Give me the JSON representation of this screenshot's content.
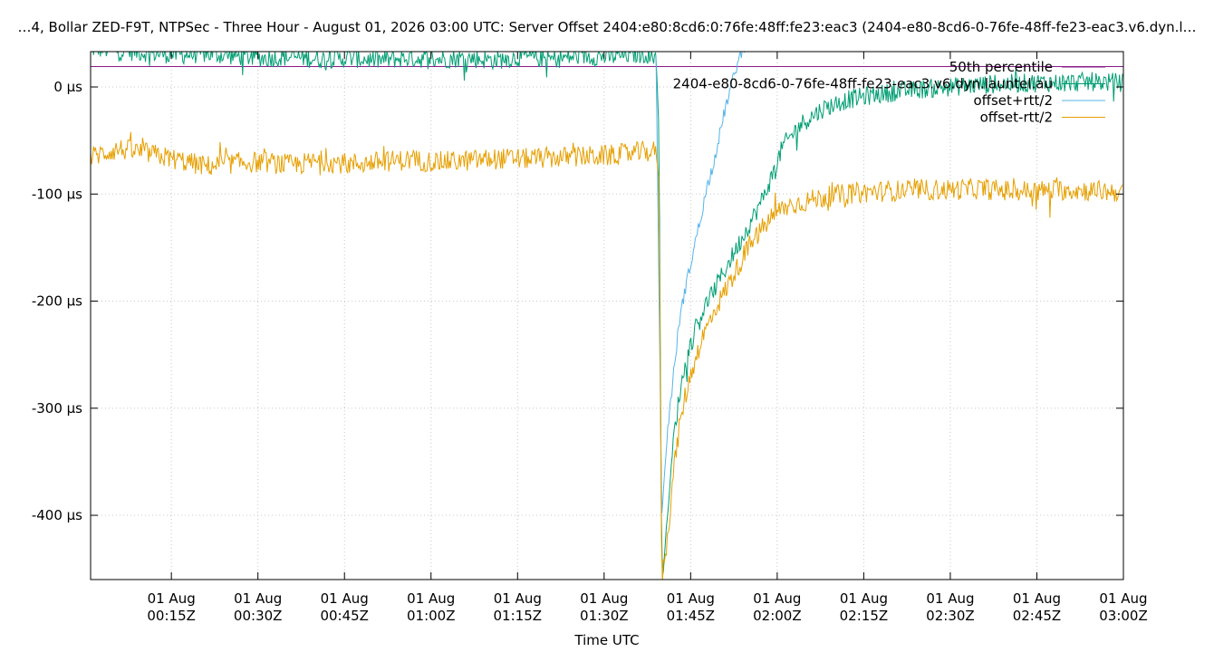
{
  "chart_data": {
    "type": "line",
    "title": "…4, Bollar ZED-F9T, NTPSec - Three Hour - August 01, 2026 03:00 UTC: Server Offset 2404:e80:8cd6:0:76fe:48ff:fe23:eac3 (2404-e80-8cd6-0-76fe-48ff-fe23-eac3.v6.dyn.l…",
    "xlabel": "Time UTC",
    "ylabel": "",
    "x_unit": "minutes after 2026-08-01 00:00 UTC",
    "xlim": [
      1,
      180
    ],
    "ylim": [
      -460,
      33
    ],
    "grid": true,
    "legend_position": "top-right",
    "x_ticks": [
      {
        "x": 15,
        "label": [
          "01 Aug",
          "00:15Z"
        ]
      },
      {
        "x": 30,
        "label": [
          "01 Aug",
          "00:30Z"
        ]
      },
      {
        "x": 45,
        "label": [
          "01 Aug",
          "00:45Z"
        ]
      },
      {
        "x": 60,
        "label": [
          "01 Aug",
          "01:00Z"
        ]
      },
      {
        "x": 75,
        "label": [
          "01 Aug",
          "01:15Z"
        ]
      },
      {
        "x": 90,
        "label": [
          "01 Aug",
          "01:30Z"
        ]
      },
      {
        "x": 105,
        "label": [
          "01 Aug",
          "01:45Z"
        ]
      },
      {
        "x": 120,
        "label": [
          "01 Aug",
          "02:00Z"
        ]
      },
      {
        "x": 135,
        "label": [
          "01 Aug",
          "02:15Z"
        ]
      },
      {
        "x": 150,
        "label": [
          "01 Aug",
          "02:30Z"
        ]
      },
      {
        "x": 165,
        "label": [
          "01 Aug",
          "02:45Z"
        ]
      },
      {
        "x": 180,
        "label": [
          "01 Aug",
          "03:00Z"
        ]
      }
    ],
    "y_ticks": [
      {
        "y": 0,
        "label": "0 µs"
      },
      {
        "y": -100,
        "label": "-100 µs"
      },
      {
        "y": -200,
        "label": "-200 µs"
      },
      {
        "y": -300,
        "label": "-300 µs"
      },
      {
        "y": -400,
        "label": "-400 µs"
      }
    ],
    "series": [
      {
        "name": "50th percentile",
        "color": "#8b1a8b",
        "kind": "hline",
        "y": 19
      },
      {
        "name": "2404-e80-8cd6-0-76fe-48ff-fe23-eac3.v6.dyn.launtel.au",
        "color": "#009e73",
        "x": [
          1,
          6,
          11,
          16,
          21,
          26,
          31,
          36,
          41,
          46,
          51,
          56,
          61,
          66,
          71,
          76,
          81,
          86,
          91,
          96,
          99,
          99.5,
          100,
          101,
          102,
          103,
          104,
          105,
          106,
          107,
          109,
          111,
          113,
          115,
          117,
          119,
          121,
          124,
          128,
          132,
          136,
          140,
          145,
          150,
          155,
          160,
          165,
          170,
          175,
          180
        ],
        "y": [
          36,
          34,
          32,
          30,
          31,
          29,
          27,
          28,
          26,
          27,
          25,
          27,
          26,
          27,
          25,
          28,
          26,
          29,
          28,
          31,
          30,
          -40,
          -460,
          -400,
          -330,
          -290,
          -260,
          -240,
          -225,
          -210,
          -190,
          -170,
          -150,
          -130,
          -110,
          -85,
          -55,
          -35,
          -20,
          -12,
          -8,
          -5,
          -2,
          0,
          2,
          3,
          4,
          4,
          5,
          4
        ]
      },
      {
        "name": "offset+rtt/2",
        "color": "#56b4e9",
        "x": [
          99,
          100,
          101,
          102,
          103,
          104,
          105,
          106,
          107,
          108,
          109,
          110,
          111,
          112,
          113,
          114,
          115,
          116
        ],
        "y": [
          30,
          -400,
          -320,
          -270,
          -220,
          -190,
          -165,
          -140,
          -115,
          -90,
          -70,
          -45,
          -20,
          0,
          20,
          35,
          45,
          55
        ]
      },
      {
        "name": "offset-rtt/2",
        "color": "#e69f00",
        "x": [
          1,
          6,
          11,
          16,
          21,
          26,
          31,
          36,
          41,
          46,
          51,
          56,
          61,
          66,
          71,
          76,
          81,
          86,
          91,
          96,
          99,
          99.5,
          100,
          101,
          102,
          103,
          104,
          105,
          106,
          107,
          109,
          111,
          113,
          115,
          117,
          119,
          121,
          124,
          128,
          132,
          136,
          140,
          145,
          150,
          155,
          160,
          165,
          170,
          175,
          180
        ],
        "y": [
          -65,
          -58,
          -62,
          -68,
          -74,
          -71,
          -70,
          -73,
          -69,
          -72,
          -70,
          -68,
          -70,
          -69,
          -67,
          -67,
          -66,
          -65,
          -64,
          -61,
          -60,
          -90,
          -460,
          -420,
          -360,
          -320,
          -290,
          -270,
          -250,
          -235,
          -210,
          -190,
          -170,
          -150,
          -135,
          -122,
          -113,
          -108,
          -103,
          -100,
          -98,
          -97,
          -96,
          -96,
          -95,
          -97,
          -97,
          -96,
          -97,
          -98
        ]
      }
    ]
  }
}
